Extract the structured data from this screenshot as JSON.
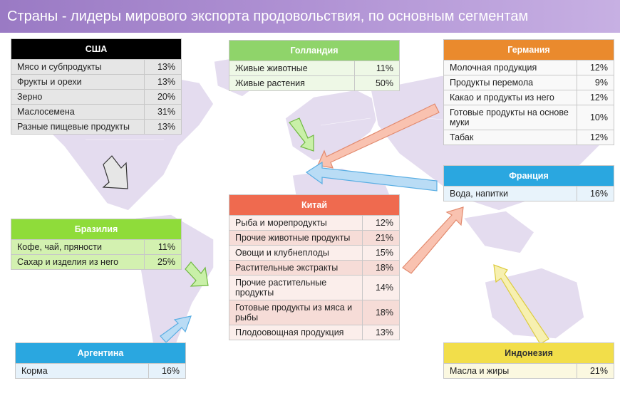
{
  "title": "Страны - лидеры мирового экспорта продовольствия, по основным сегментам",
  "colors": {
    "map": "#e4dcef",
    "usa": "#000000",
    "holland": "#8fd46a",
    "germany": "#ea8a2d",
    "france": "#2aa7e0",
    "china": "#ef6a4f",
    "brazil": "#8fdc3a",
    "argentina": "#2aa7e0",
    "indonesia": "#f2de4a"
  },
  "usa": {
    "name": "США",
    "rows": [
      {
        "label": "Мясо и субпродукты",
        "value": "13%"
      },
      {
        "label": "Фрукты и орехи",
        "value": "13%"
      },
      {
        "label": "Зерно",
        "value": "20%"
      },
      {
        "label": "Маслосемена",
        "value": "31%"
      },
      {
        "label": "Разные пищевые продукты",
        "value": "13%"
      }
    ]
  },
  "holland": {
    "name": "Голландия",
    "rows": [
      {
        "label": "Живые животные",
        "value": "11%"
      },
      {
        "label": "Живые растения",
        "value": "50%"
      }
    ]
  },
  "germany": {
    "name": "Германия",
    "rows": [
      {
        "label": "Молочная продукция",
        "value": "12%"
      },
      {
        "label": "Продукты перемола",
        "value": "9%"
      },
      {
        "label": "Какао и продукты из него",
        "value": "12%"
      },
      {
        "label": "Готовые продукты на основе муки",
        "value": "10%"
      },
      {
        "label": "Табак",
        "value": "12%"
      }
    ]
  },
  "france": {
    "name": "Франция",
    "rows": [
      {
        "label": "Вода, напитки",
        "value": "16%"
      }
    ]
  },
  "china": {
    "name": "Китай",
    "rows": [
      {
        "label": "Рыба и морепродукты",
        "value": "12%"
      },
      {
        "label": "Прочие животные продукты",
        "value": "21%"
      },
      {
        "label": "Овощи и клубнеплоды",
        "value": "15%"
      },
      {
        "label": "Растительные экстракты",
        "value": "18%"
      },
      {
        "label": "Прочие растительные продукты",
        "value": "14%"
      },
      {
        "label": "Готовые продукты из мяса и рыбы",
        "value": "18%"
      },
      {
        "label": "Плодоовощная продукция",
        "value": "13%"
      }
    ]
  },
  "brazil": {
    "name": "Бразилия",
    "rows": [
      {
        "label": "Кофе, чай, пряности",
        "value": "11%"
      },
      {
        "label": "Сахар и изделия из него",
        "value": "25%"
      }
    ]
  },
  "argentina": {
    "name": "Аргентина",
    "rows": [
      {
        "label": "Корма",
        "value": "16%"
      }
    ]
  },
  "indonesia": {
    "name": "Индонезия",
    "rows": [
      {
        "label": "Масла и жиры",
        "value": "21%"
      }
    ]
  }
}
